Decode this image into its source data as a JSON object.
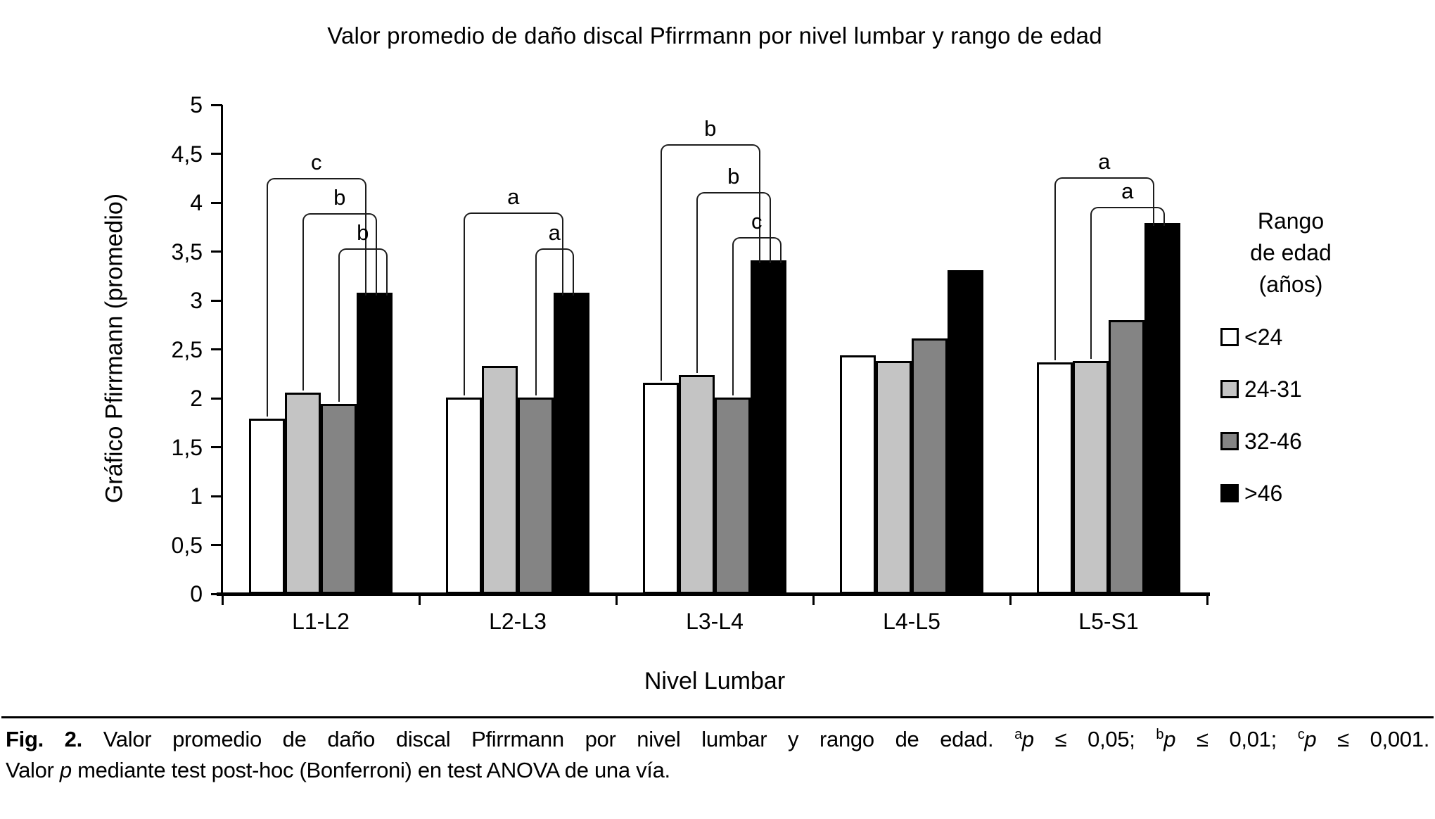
{
  "chart_data": {
    "type": "bar",
    "title": "Valor promedio de daño discal Pfirrmann por nivel lumbar y rango de edad",
    "xlabel": "Nivel Lumbar",
    "ylabel": "Gráfico Pfirrmann (promedio)",
    "ylim": [
      0,
      5
    ],
    "grid": false,
    "legend_position": "right",
    "yticks": [
      {
        "value": 5,
        "label": "5"
      },
      {
        "value": 4.5,
        "label": "4,5"
      },
      {
        "value": 4,
        "label": "4"
      },
      {
        "value": 3.5,
        "label": "3,5"
      },
      {
        "value": 3,
        "label": "3"
      },
      {
        "value": 2.5,
        "label": "2,5"
      },
      {
        "value": 2,
        "label": "2"
      },
      {
        "value": 1.5,
        "label": "1,5"
      },
      {
        "value": 1,
        "label": "1"
      },
      {
        "value": 0.5,
        "label": "0,5"
      },
      {
        "value": 0,
        "label": "0"
      }
    ],
    "categories": [
      "L1-L2",
      "L2-L3",
      "L3-L4",
      "L4-L5",
      "L5-S1"
    ],
    "series": [
      {
        "name": "<24",
        "color": "#ffffff",
        "values": [
          1.79,
          2.01,
          2.16,
          2.44,
          2.37
        ]
      },
      {
        "name": "24-31",
        "color": "#c4c4c4",
        "values": [
          2.06,
          2.33,
          2.24,
          2.38,
          2.38
        ]
      },
      {
        "name": "32-46",
        "color": "#848484",
        "values": [
          1.94,
          2.01,
          2.01,
          2.61,
          2.8
        ]
      },
      {
        "name": ">46",
        "color": "#000000",
        "values": [
          3.08,
          3.08,
          3.41,
          3.31,
          3.79
        ]
      }
    ],
    "significance_brackets": [
      {
        "category": "L1-L2",
        "from": 0,
        "to": 3,
        "label": "c",
        "height": 4.25
      },
      {
        "category": "L1-L2",
        "from": 1,
        "to": 3,
        "label": "b",
        "height": 3.89
      },
      {
        "category": "L1-L2",
        "from": 2,
        "to": 3,
        "label": "b",
        "height": 3.53
      },
      {
        "category": "L2-L3",
        "from": 0,
        "to": 3,
        "label": "a",
        "height": 3.9
      },
      {
        "category": "L2-L3",
        "from": 2,
        "to": 3,
        "label": "a",
        "height": 3.53
      },
      {
        "category": "L3-L4",
        "from": 0,
        "to": 3,
        "label": "b",
        "height": 4.6
      },
      {
        "category": "L3-L4",
        "from": 1,
        "to": 3,
        "label": "b",
        "height": 4.11
      },
      {
        "category": "L3-L4",
        "from": 2,
        "to": 3,
        "label": "c",
        "height": 3.65
      },
      {
        "category": "L5-S1",
        "from": 0,
        "to": 3,
        "label": "a",
        "height": 4.26
      },
      {
        "category": "L5-S1",
        "from": 1,
        "to": 3,
        "label": "a",
        "height": 3.96
      }
    ],
    "legend": {
      "title_lines": [
        "Rango",
        "de edad",
        "(años)"
      ]
    }
  },
  "caption": {
    "line1_runs": [
      {
        "t": "Fig. 2.",
        "b": true
      },
      {
        "t": " Valor promedio de daño discal Pfirrmann por nivel lumbar y rango de edad. "
      },
      {
        "t": "a",
        "sup": true
      },
      {
        "t": "p",
        "i": true
      },
      {
        "t": " ≤ 0,05; "
      },
      {
        "t": "b",
        "sup": true
      },
      {
        "t": "p",
        "i": true
      },
      {
        "t": " ≤ 0,01; "
      },
      {
        "t": "c",
        "sup": true
      },
      {
        "t": "p",
        "i": true
      },
      {
        "t": " ≤ 0,001."
      }
    ],
    "line2_runs": [
      {
        "t": "Valor "
      },
      {
        "t": "p",
        "i": true
      },
      {
        "t": " mediante test post-hoc (Bonferroni) en test ANOVA de una vía."
      }
    ]
  }
}
